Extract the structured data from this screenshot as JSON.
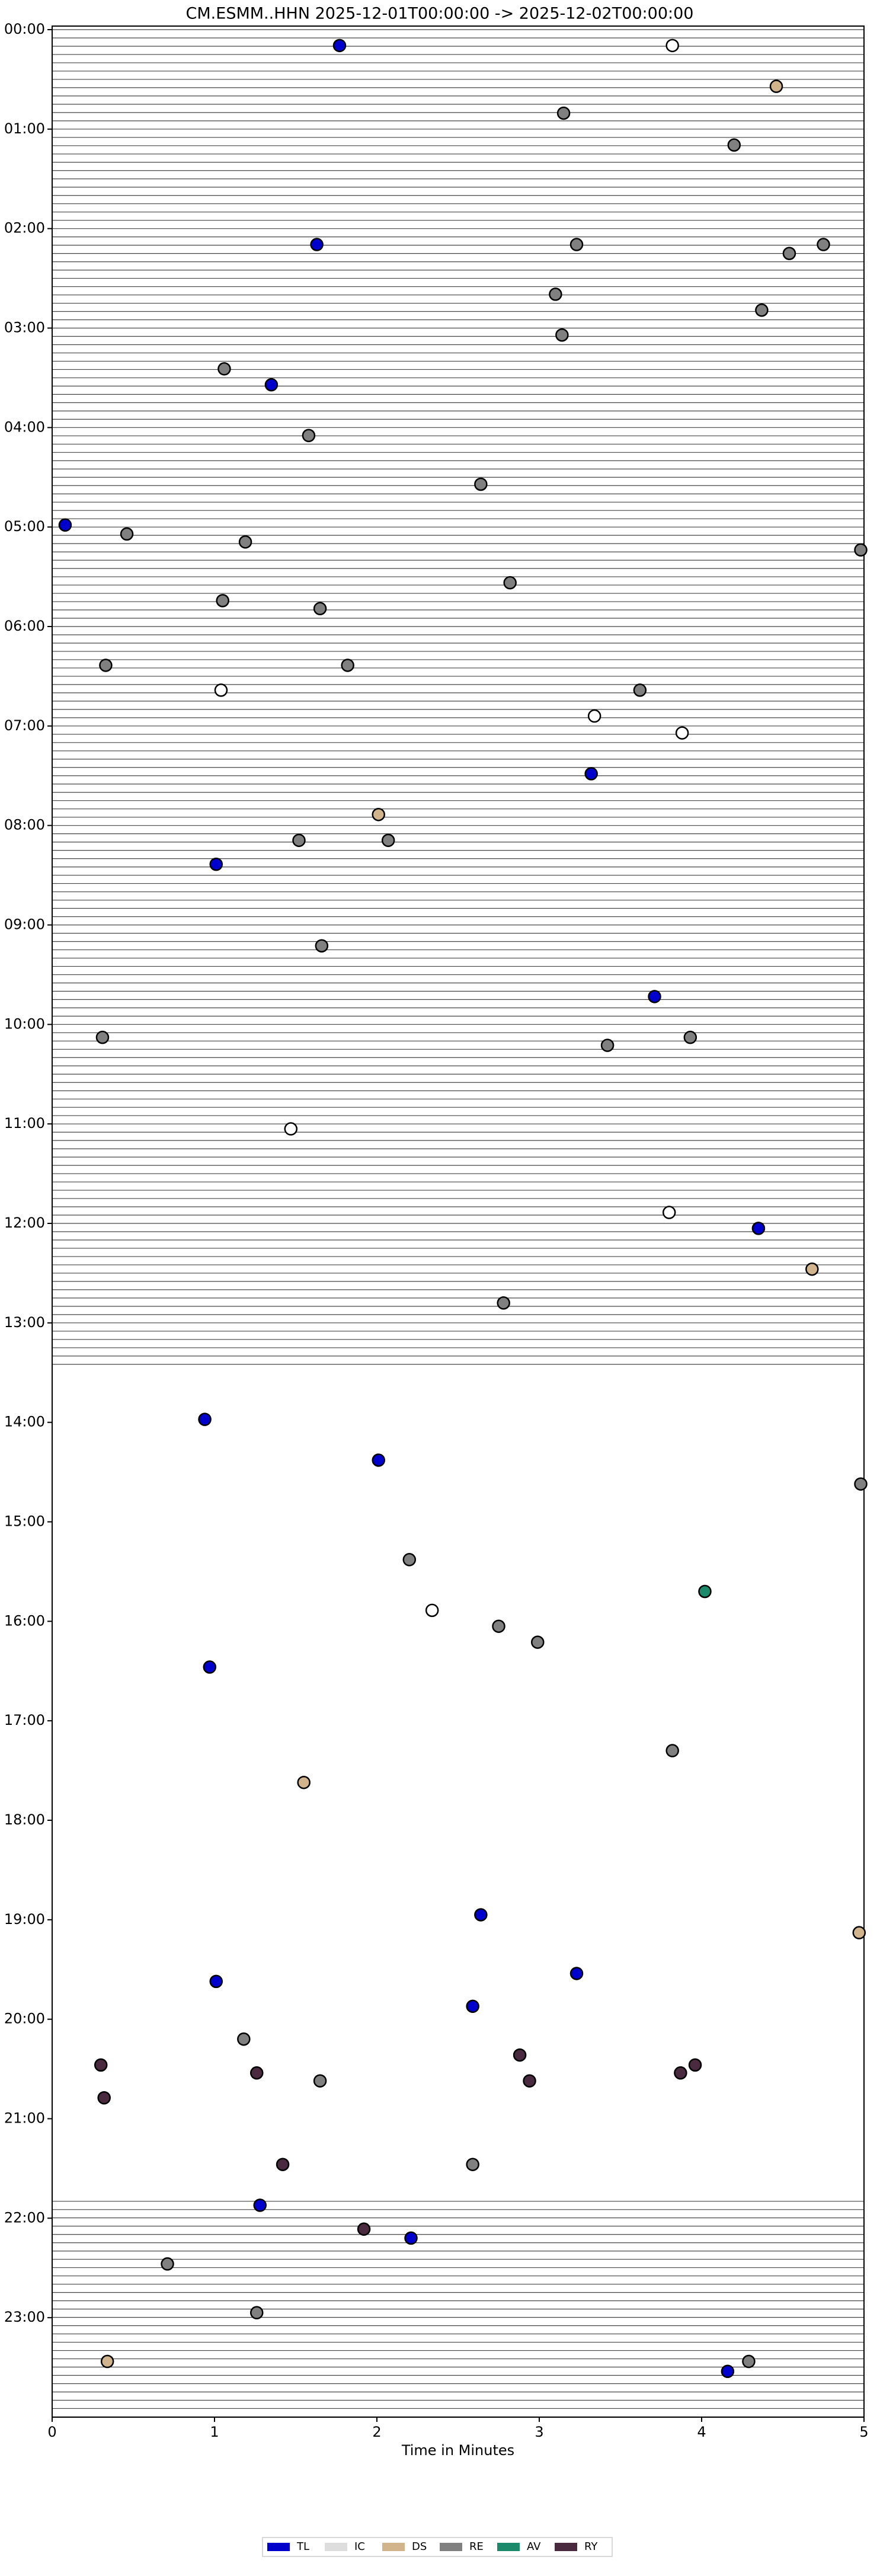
{
  "chart_data": {
    "type": "scatter",
    "title": "CM.ESMM..HHN  2025-12-01T00:00:00 -> 2025-12-02T00:00:00",
    "x_label": "Time in Minutes",
    "xlim": [
      0,
      5
    ],
    "xticks": [
      0,
      1,
      2,
      3,
      4,
      5
    ],
    "ylim": [
      0,
      24
    ],
    "yticks": [
      {
        "value": 0,
        "label": "00:00"
      },
      {
        "value": 1,
        "label": "01:00"
      },
      {
        "value": 2,
        "label": "02:00"
      },
      {
        "value": 3,
        "label": "03:00"
      },
      {
        "value": 4,
        "label": "04:00"
      },
      {
        "value": 5,
        "label": "05:00"
      },
      {
        "value": 6,
        "label": "06:00"
      },
      {
        "value": 7,
        "label": "07:00"
      },
      {
        "value": 8,
        "label": "08:00"
      },
      {
        "value": 9,
        "label": "09:00"
      },
      {
        "value": 10,
        "label": "10:00"
      },
      {
        "value": 11,
        "label": "11:00"
      },
      {
        "value": 12,
        "label": "12:00"
      },
      {
        "value": 13,
        "label": "13:00"
      },
      {
        "value": 14,
        "label": "14:00"
      },
      {
        "value": 15,
        "label": "15:00"
      },
      {
        "value": 16,
        "label": "16:00"
      },
      {
        "value": 17,
        "label": "17:00"
      },
      {
        "value": 18,
        "label": "18:00"
      },
      {
        "value": 19,
        "label": "19:00"
      },
      {
        "value": 20,
        "label": "20:00"
      },
      {
        "value": 21,
        "label": "21:00"
      },
      {
        "value": 22,
        "label": "22:00"
      },
      {
        "value": 23,
        "label": "23:00"
      }
    ],
    "traces": [
      {
        "start": 0,
        "end": 13.5
      },
      {
        "start": 21.83,
        "end": 24
      }
    ],
    "series": [
      {
        "name": "TL",
        "color": "#0000cc",
        "x": [
          1.77,
          1.63,
          1.35,
          0.08,
          3.32,
          1.01,
          3.71,
          4.35,
          0.94,
          2.01,
          0.97,
          2.64,
          3.23,
          1.01,
          2.59,
          1.28,
          2.21,
          4.16
        ],
        "values": [
          0.16,
          2.16,
          3.57,
          4.98,
          7.48,
          8.39,
          9.72,
          12.05,
          13.97,
          14.38,
          16.46,
          18.95,
          19.54,
          19.62,
          19.87,
          21.87,
          22.2,
          23.54
        ]
      },
      {
        "name": "IC",
        "color": "#dddddd",
        "x": [
          3.82,
          1.04,
          3.34,
          3.88,
          1.47,
          3.8,
          2.34
        ],
        "values": [
          0.16,
          6.64,
          6.9,
          7.07,
          11.05,
          11.89,
          15.89
        ]
      },
      {
        "name": "DS",
        "color": "#d2b48c",
        "x": [
          4.46,
          2.01,
          4.68,
          1.55,
          4.97,
          0.34
        ],
        "values": [
          0.57,
          7.89,
          12.46,
          17.62,
          19.13,
          23.44
        ]
      },
      {
        "name": "RE",
        "color": "#808080",
        "x": [
          3.15,
          4.2,
          3.23,
          4.54,
          4.75,
          3.1,
          4.37,
          3.14,
          1.06,
          1.58,
          2.64,
          0.46,
          1.19,
          4.98,
          2.82,
          1.05,
          1.65,
          0.33,
          1.82,
          3.62,
          1.52,
          2.07,
          1.66,
          0.31,
          3.42,
          3.93,
          2.78,
          4.98,
          2.2,
          2.75,
          2.99,
          3.82,
          1.18,
          1.65,
          2.59,
          0.71,
          1.26,
          4.29
        ],
        "values": [
          0.84,
          1.16,
          2.16,
          2.25,
          2.16,
          2.66,
          2.82,
          3.07,
          3.41,
          4.08,
          4.57,
          5.07,
          5.15,
          5.23,
          5.56,
          5.74,
          5.82,
          6.39,
          6.39,
          6.64,
          8.15,
          8.15,
          9.21,
          10.13,
          10.21,
          10.13,
          12.8,
          14.62,
          15.38,
          16.05,
          16.21,
          17.3,
          20.2,
          20.62,
          21.46,
          22.46,
          22.95,
          23.44
        ]
      },
      {
        "name": "AV",
        "color": "#1a8a6a",
        "x": [
          4.02
        ],
        "values": [
          15.7
        ]
      },
      {
        "name": "RY",
        "color": "#4a2a3e",
        "x": [
          2.88,
          0.3,
          1.26,
          2.94,
          3.87,
          3.96,
          0.32,
          1.42,
          1.92
        ],
        "values": [
          20.36,
          20.46,
          20.54,
          20.62,
          20.54,
          20.46,
          20.79,
          21.46,
          22.11
        ]
      }
    ]
  }
}
